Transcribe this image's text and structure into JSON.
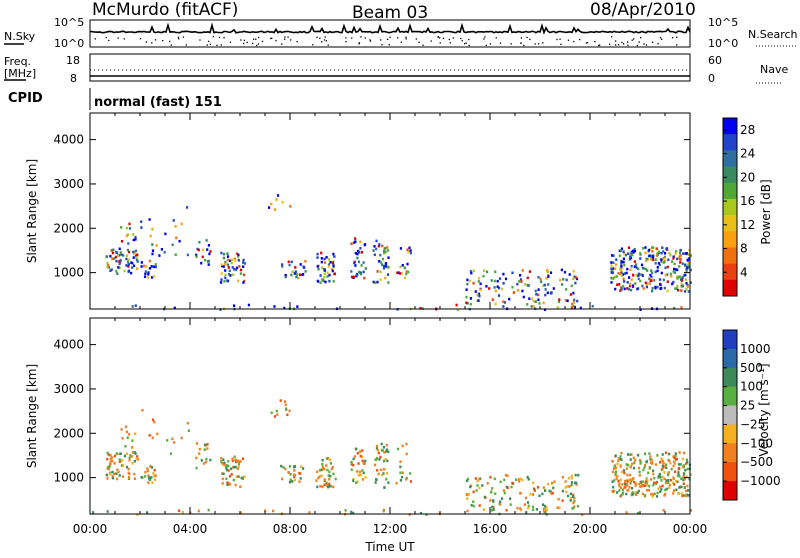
{
  "header": {
    "station": "McMurdo (fitACF)",
    "beam": "Beam 03",
    "date": "08/Apr/2010"
  },
  "noise_panel": {
    "left_label": "N.Sky",
    "right_label": "N.Search",
    "left_ticks": [
      "10^5",
      "10^0"
    ],
    "right_ticks": [
      "10^5",
      "10^0"
    ]
  },
  "freq_panel": {
    "left_label_1": "Freq.",
    "left_label_2": "[MHz]",
    "right_label": "Nave",
    "left_ticks": [
      "18",
      "8"
    ],
    "right_ticks": [
      "60",
      "0"
    ]
  },
  "cpid_panel": {
    "label": "CPID",
    "text": "normal (fast) 151"
  },
  "chart_data": [
    {
      "type": "heatmap",
      "ylabel": "Slant Range [km]",
      "xlabel": "",
      "x_ticks": [
        "00:00",
        "04:00",
        "08:00",
        "12:00",
        "16:00",
        "20:00",
        "00:00"
      ],
      "xlim_hours": [
        0,
        24
      ],
      "y_ticks": [
        1000,
        2000,
        3000,
        4000
      ],
      "ylim": [
        180,
        4600
      ],
      "colorbar": {
        "label": "Power [dB]",
        "ticks": [
          "4",
          "8",
          "12",
          "16",
          "20",
          "24",
          "28"
        ],
        "range": [
          0,
          30
        ],
        "colors": [
          "#0000ee",
          "#2244c8",
          "#2f6fa0",
          "#3a8a60",
          "#4ea838",
          "#a8c820",
          "#e8c018",
          "#f8a010",
          "#f07010",
          "#e84010",
          "#e00000"
        ]
      }
    },
    {
      "type": "heatmap",
      "ylabel": "Slant Range [km]",
      "xlabel": "Time UT",
      "x_ticks": [
        "00:00",
        "04:00",
        "08:00",
        "12:00",
        "16:00",
        "20:00",
        "00:00"
      ],
      "xlim_hours": [
        0,
        24
      ],
      "y_ticks": [
        1000,
        2000,
        3000,
        4000
      ],
      "ylim": [
        180,
        4600
      ],
      "colorbar": {
        "label": "Velocity [m s⁻¹]",
        "ticks": [
          "1000",
          "500",
          "100",
          "25",
          "−25",
          "−100",
          "−500",
          "−1000"
        ],
        "colors": [
          "#1f3fc0",
          "#2a6aa8",
          "#3c8a5a",
          "#58b040",
          "#bcbcbc",
          "#f4b020",
          "#f08020",
          "#ee5010",
          "#e00000"
        ]
      }
    }
  ]
}
